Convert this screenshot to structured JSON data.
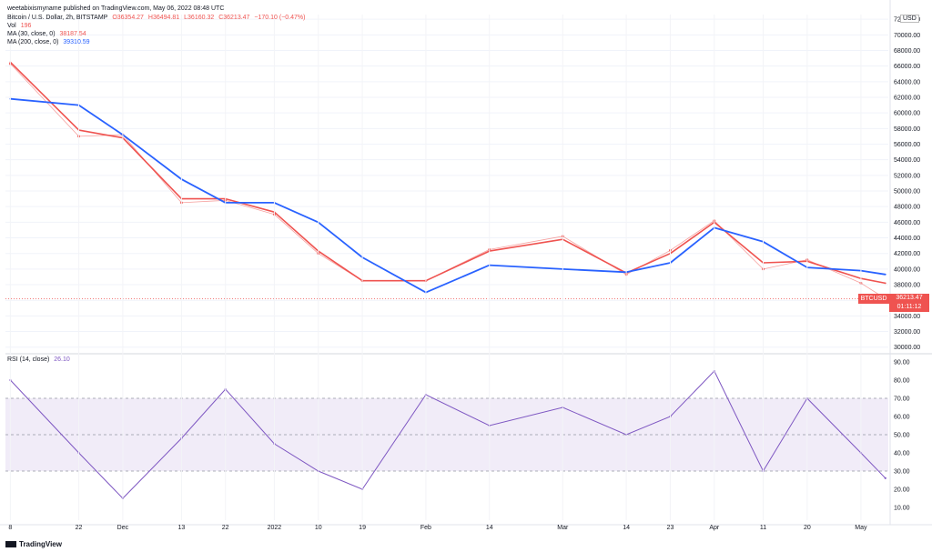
{
  "watermark": "weetabixismyname published on TradingView.com, May 06, 2022 08:48 UTC",
  "legend": {
    "symbol": "Bitcoin / U.S. Dollar, 2h, BITSTAMP",
    "open": "O36354.27",
    "high": "H36494.81",
    "low": "L36160.32",
    "close": "C36213.47",
    "change": "−170.10 (−0.47%)",
    "vol_label": "Vol",
    "vol_value": "196",
    "ma30_label": "MA (30, close, 0)",
    "ma30_value": "38187.54",
    "ma200_label": "MA (200, close, 0)",
    "ma200_value": "39310.59",
    "rsi_label": "RSI (14, close)",
    "rsi_value": "26.10"
  },
  "currency": "USD",
  "price_tag": {
    "ticker": "BTCUSD",
    "price": "36213.47",
    "countdown": "01:11:12"
  },
  "footer_logo": "TradingView",
  "colors": {
    "up": "#26a69a",
    "down": "#ef5350",
    "ma30": "#ef5350",
    "ma200": "#2962ff",
    "rsi": "#7e57c2",
    "rsi_band": "#ede7f6"
  },
  "chart_data": [
    {
      "type": "line",
      "panel": "price",
      "y_ticks": [
        "30000.00",
        "32000.00",
        "34000.00",
        "36000.00",
        "38000.00",
        "40000.00",
        "42000.00",
        "44000.00",
        "46000.00",
        "48000.00",
        "50000.00",
        "52000.00",
        "54000.00",
        "56000.00",
        "58000.00",
        "60000.00",
        "62000.00",
        "64000.00",
        "66000.00",
        "68000.00",
        "70000.00",
        "72000.00"
      ],
      "ylim": [
        29500,
        72600
      ],
      "x_ticks": [
        "8",
        "22",
        "Dec",
        "13",
        "22",
        "2022",
        "10",
        "19",
        "Feb",
        "14",
        "Mar",
        "14",
        "23",
        "Apr",
        "11",
        "20",
        "May"
      ],
      "x": [
        "2021-11-08",
        "2021-11-22",
        "2021-12-01",
        "2021-12-13",
        "2021-12-22",
        "2022-01-01",
        "2022-01-10",
        "2022-01-19",
        "2022-02-01",
        "2022-02-14",
        "2022-03-01",
        "2022-03-14",
        "2022-03-23",
        "2022-04-01",
        "2022-04-11",
        "2022-04-20",
        "2022-05-01",
        "2022-05-06"
      ],
      "series": [
        {
          "name": "Close",
          "values": [
            66300,
            57000,
            57200,
            48500,
            48800,
            47000,
            42000,
            38500,
            38500,
            42500,
            44200,
            39300,
            42400,
            46200,
            40000,
            41200,
            38200,
            36213
          ]
        },
        {
          "name": "MA (30, close, 0)",
          "values": [
            66500,
            57800,
            56800,
            49000,
            49000,
            47300,
            42300,
            38500,
            38500,
            42300,
            43800,
            39500,
            42000,
            46000,
            40800,
            41000,
            38800,
            38188
          ]
        },
        {
          "name": "MA (200, close, 0)",
          "values": [
            61800,
            61000,
            57200,
            51500,
            48500,
            48500,
            46000,
            41500,
            37000,
            40500,
            40000,
            39600,
            40800,
            45300,
            43500,
            40200,
            39800,
            39311
          ]
        }
      ]
    },
    {
      "type": "line",
      "panel": "rsi",
      "y_ticks": [
        "10.00",
        "20.00",
        "30.00",
        "40.00",
        "50.00",
        "60.00",
        "70.00",
        "80.00",
        "90.00"
      ],
      "ylim": [
        3,
        93
      ],
      "band": [
        30,
        70
      ],
      "x": [
        "2021-11-08",
        "2021-11-22",
        "2021-12-01",
        "2021-12-13",
        "2021-12-22",
        "2022-01-01",
        "2022-01-10",
        "2022-01-19",
        "2022-02-01",
        "2022-02-14",
        "2022-03-01",
        "2022-03-14",
        "2022-03-23",
        "2022-04-01",
        "2022-04-11",
        "2022-04-20",
        "2022-05-01",
        "2022-05-06"
      ],
      "series": [
        {
          "name": "RSI (14, close)",
          "values": [
            80,
            40,
            15,
            48,
            75,
            45,
            30,
            20,
            72,
            55,
            65,
            50,
            60,
            85,
            30,
            70,
            40,
            26.1
          ]
        }
      ]
    }
  ]
}
